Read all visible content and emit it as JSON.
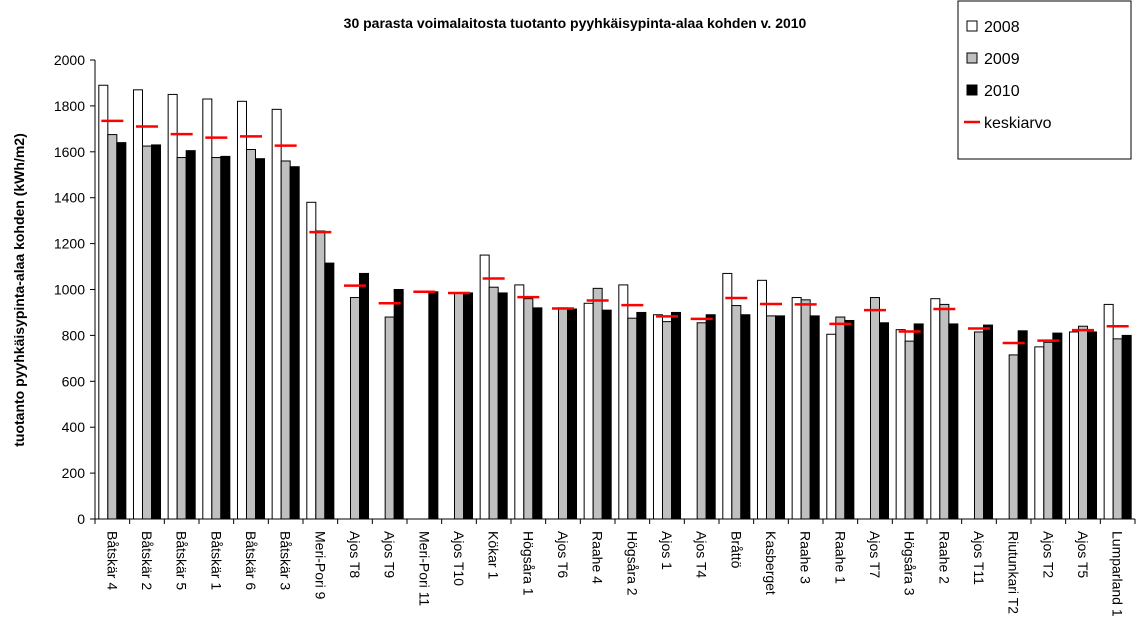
{
  "chart_data": {
    "type": "bar",
    "title": "30 parasta voimalaitosta tuotanto pyyhkäisypinta-alaa kohden v. 2010",
    "y_label": "tuotanto pyyhkäisypinta-alaa kohden (kWh/m2)",
    "categories": [
      "Båtskär 4",
      "Båtskär 2",
      "Båtskär 5",
      "Båtskär 1",
      "Båtskär 6",
      "Båtskär 3",
      "Meri-Pori 9",
      "Ajos T8",
      "Ajos T9",
      "Meri-Pori 11",
      "Ajos T10",
      "Kökar 1",
      "Högsåra 1",
      "Ajos T6",
      "Raahe 4",
      "Högsåra 2",
      "Ajos 1",
      "Ajos T4",
      "Bråttö",
      "Kasberget",
      "Raahe 3",
      "Raahe 1",
      "Ajos T7",
      "Högsåra 3",
      "Raahe 2",
      "Ajos T11",
      "Riutunkari T2",
      "Ajos T2",
      "Ajos T5",
      "Lumparland 1"
    ],
    "series": [
      {
        "name": "2008",
        "color": "#ffffff",
        "style": "bar",
        "values": [
          1890,
          1870,
          1850,
          1830,
          1820,
          1785,
          1380,
          null,
          null,
          null,
          null,
          1150,
          1020,
          null,
          940,
          1020,
          890,
          null,
          1070,
          1040,
          965,
          805,
          null,
          825,
          960,
          null,
          null,
          750,
          815,
          935
        ]
      },
      {
        "name": "2009",
        "color": "#c0c0c0",
        "style": "bar",
        "values": [
          1675,
          1625,
          1575,
          1575,
          1610,
          1560,
          1255,
          965,
          880,
          null,
          985,
          1010,
          960,
          920,
          1005,
          875,
          860,
          855,
          930,
          885,
          955,
          880,
          965,
          775,
          935,
          815,
          715,
          770,
          840,
          785
        ]
      },
      {
        "name": "2010",
        "color": "#000000",
        "style": "bar",
        "values": [
          1640,
          1630,
          1605,
          1580,
          1570,
          1535,
          1115,
          1070,
          1000,
          990,
          985,
          985,
          920,
          915,
          910,
          900,
          900,
          890,
          890,
          885,
          885,
          865,
          855,
          850,
          850,
          845,
          820,
          810,
          815,
          800
        ]
      },
      {
        "name": "keskiarvo",
        "color": "#ff0000",
        "style": "dash",
        "values": [
          1735,
          1710,
          1677,
          1662,
          1667,
          1627,
          1250,
          1017,
          940,
          990,
          985,
          1048,
          967,
          917,
          952,
          932,
          883,
          872,
          963,
          937,
          935,
          850,
          910,
          817,
          915,
          830,
          767,
          777,
          823,
          840
        ]
      }
    ],
    "ylim": [
      0,
      2000
    ],
    "yticks": [
      0,
      200,
      400,
      600,
      800,
      1000,
      1200,
      1400,
      1600,
      1800,
      2000
    ],
    "legend": "top-right"
  }
}
